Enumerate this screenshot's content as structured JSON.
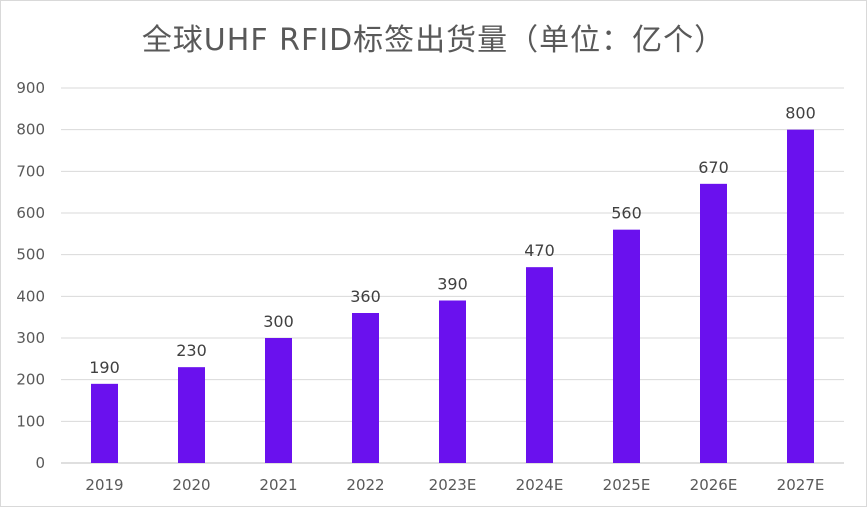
{
  "chart_data": {
    "type": "bar",
    "title": "全球UHF RFID标签出货量（单位：亿个）",
    "categories": [
      "2019",
      "2020",
      "2021",
      "2022",
      "2023E",
      "2024E",
      "2025E",
      "2026E",
      "2027E"
    ],
    "values": [
      190,
      230,
      300,
      360,
      390,
      470,
      560,
      670,
      800
    ],
    "ylim": [
      0,
      900
    ],
    "yticks": [
      0,
      100,
      200,
      300,
      400,
      500,
      600,
      700,
      800,
      900
    ],
    "grid": true,
    "legend": "none",
    "bar_color": "#6a11ee",
    "data_labels": true
  }
}
